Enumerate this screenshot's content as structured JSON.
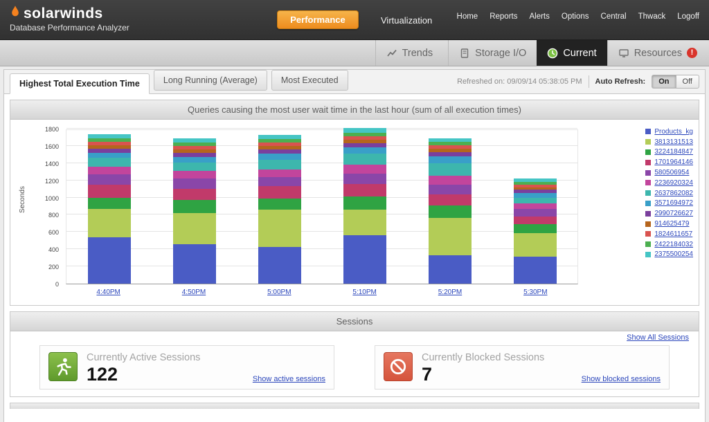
{
  "header": {
    "logo": "solarwinds",
    "subtitle": "Database Performance Analyzer",
    "performance_button": "Performance",
    "virtualization_label": "Virtualization",
    "nav": [
      "Home",
      "Reports",
      "Alerts",
      "Options",
      "Central",
      "Thwack",
      "Logoff"
    ]
  },
  "subnav": {
    "tabs": [
      {
        "label": "Trends",
        "icon": "trends-icon",
        "badge": "warning-icon",
        "active": false
      },
      {
        "label": "Storage I/O",
        "icon": "storage-icon",
        "active": false
      },
      {
        "label": "Current",
        "icon": "current-icon",
        "active": true
      },
      {
        "label": "Resources",
        "icon": "resources-icon",
        "badge": "alert-badge",
        "active": false
      }
    ]
  },
  "toolbar": {
    "tabs": [
      {
        "label": "Highest Total Execution Time",
        "active": true
      },
      {
        "label": "Long Running (Average)",
        "active": false
      },
      {
        "label": "Most Executed",
        "active": false
      }
    ],
    "refreshed_label": "Refreshed on: 09/09/14 05:38:05 PM",
    "auto_refresh_label": "Auto Refresh:",
    "on_label": "On",
    "off_label": "Off",
    "auto_refresh_state": "On"
  },
  "chart_panel": {
    "title": "Queries causing the most user wait time in the last hour (sum of all execution times)"
  },
  "chart_data": {
    "type": "bar",
    "stacked": true,
    "ylabel": "Seconds",
    "ylim": [
      0,
      1800
    ],
    "ytick_step": 200,
    "grid": true,
    "legend_position": "right",
    "categories": [
      "4:40PM",
      "4:50PM",
      "5:00PM",
      "5:10PM",
      "5:20PM",
      "5:30PM"
    ],
    "series": [
      {
        "name": "Products_kg",
        "color": "#4a5cc5",
        "values": [
          540,
          460,
          430,
          560,
          330,
          310
        ]
      },
      {
        "name": "3813131513",
        "color": "#b3cc57",
        "values": [
          330,
          360,
          430,
          300,
          430,
          280
        ]
      },
      {
        "name": "3224184847",
        "color": "#2fa343",
        "values": [
          130,
          150,
          130,
          150,
          150,
          100
        ]
      },
      {
        "name": "1701964146",
        "color": "#c13a6a",
        "values": [
          150,
          130,
          140,
          150,
          130,
          90
        ]
      },
      {
        "name": "580506954",
        "color": "#8a46a8",
        "values": [
          120,
          120,
          110,
          120,
          110,
          90
        ]
      },
      {
        "name": "2236920324",
        "color": "#c2459c",
        "values": [
          90,
          90,
          90,
          100,
          100,
          60
        ]
      },
      {
        "name": "2637862082",
        "color": "#3db6ad",
        "values": [
          100,
          100,
          110,
          130,
          150,
          70
        ]
      },
      {
        "name": "3571694972",
        "color": "#399fc8",
        "values": [
          60,
          60,
          70,
          70,
          80,
          50
        ]
      },
      {
        "name": "2990726627",
        "color": "#7a3f9d",
        "values": [
          50,
          50,
          50,
          50,
          50,
          40
        ]
      },
      {
        "name": "914625479",
        "color": "#b5651d",
        "values": [
          40,
          40,
          40,
          40,
          40,
          30
        ]
      },
      {
        "name": "1824611657",
        "color": "#d9534f",
        "values": [
          40,
          40,
          40,
          40,
          40,
          30
        ]
      },
      {
        "name": "2422184032",
        "color": "#4caf50",
        "values": [
          40,
          40,
          40,
          40,
          40,
          30
        ]
      },
      {
        "name": "2375500254",
        "color": "#45c5c5",
        "values": [
          50,
          50,
          50,
          60,
          40,
          40
        ]
      }
    ]
  },
  "sessions": {
    "title": "Sessions",
    "show_all_label": "Show All Sessions",
    "active": {
      "label": "Currently Active Sessions",
      "value": "122",
      "link": "Show active sessions"
    },
    "blocked": {
      "label": "Currently Blocked Sessions",
      "value": "7",
      "link": "Show blocked sessions"
    }
  }
}
